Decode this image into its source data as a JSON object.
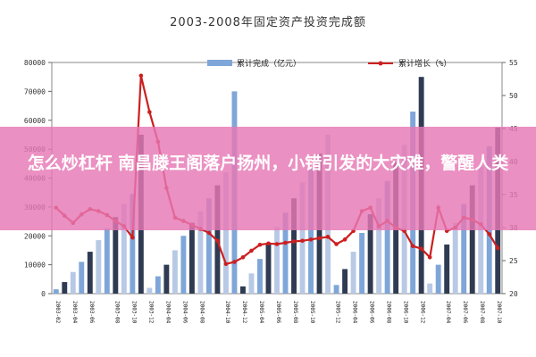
{
  "overlay": {
    "headline": "怎么炒杠杆 南昌滕王阁落户扬州，小错引发的大灾难，警醒人类"
  },
  "chart_data": {
    "type": "bar+line",
    "title": "2003-2008年固定资产投资完成额",
    "legend": [
      {
        "label": "累计完成（亿元）",
        "kind": "bar",
        "color": "#7fa6d8"
      },
      {
        "label": "累计增长（%）",
        "kind": "line",
        "color": "#cc1f1f"
      }
    ],
    "legend_position": "top",
    "left_axis": {
      "ylim": [
        0,
        80000
      ],
      "ticks": [
        "0",
        "10000",
        "20000",
        "30000",
        "40000",
        "50000",
        "60000",
        "70000",
        "80000"
      ]
    },
    "right_axis": {
      "ylim": [
        20,
        55
      ],
      "ticks": [
        "20",
        "25",
        "30",
        "35",
        "40",
        "45",
        "50",
        "55"
      ]
    },
    "x_tick_labels": [
      "2003-02",
      "2003-04",
      "2003-06",
      "2003-08",
      "2003-10",
      "2003-12",
      "2004-04",
      "2004-06",
      "2004-08",
      "2004-10",
      "2004-12",
      "2005-04",
      "2005-06",
      "2005-08",
      "2005-10",
      "2005-12",
      "2006-04",
      "2006-06",
      "2006-08",
      "2006-10",
      "2006-12",
      "2007-04",
      "2007-06",
      "2007-08",
      "2007-10"
    ],
    "months": [
      "2003-02",
      "2003-03",
      "2003-04",
      "2003-05",
      "2003-06",
      "2003-07",
      "2003-08",
      "2003-09",
      "2003-10",
      "2003-11",
      "2003-12",
      "2004-02",
      "2004-03",
      "2004-04",
      "2004-05",
      "2004-06",
      "2004-07",
      "2004-08",
      "2004-09",
      "2004-10",
      "2004-11",
      "2004-12",
      "2005-02",
      "2005-03",
      "2005-04",
      "2005-05",
      "2005-06",
      "2005-07",
      "2005-08",
      "2005-09",
      "2005-10",
      "2005-11",
      "2005-12",
      "2006-02",
      "2006-03",
      "2006-04",
      "2006-05",
      "2006-06",
      "2006-07",
      "2006-08",
      "2006-09",
      "2006-10",
      "2006-11",
      "2006-12",
      "2007-02",
      "2007-03",
      "2007-04",
      "2007-05",
      "2007-06",
      "2007-07",
      "2007-08",
      "2007-09",
      "2007-10"
    ],
    "bar_values": [
      1500,
      4000,
      7500,
      11000,
      14500,
      18500,
      22500,
      26500,
      31000,
      34500,
      55000,
      2000,
      6000,
      10000,
      15000,
      20000,
      24500,
      28500,
      33000,
      37500,
      42000,
      70000,
      2500,
      7000,
      12000,
      17500,
      23000,
      28000,
      33000,
      38500,
      43500,
      48500,
      55000,
      3000,
      8500,
      14500,
      21000,
      27500,
      33000,
      39000,
      45500,
      51500,
      63000,
      75000,
      3500,
      10000,
      17000,
      24500,
      31000,
      37500,
      44000,
      51000,
      57500
    ],
    "line_values": [
      33.0,
      31.8,
      30.7,
      32.0,
      32.8,
      32.5,
      31.9,
      31.0,
      30.2,
      28.5,
      53.0,
      47.5,
      43.0,
      36.0,
      31.5,
      31.0,
      30.4,
      29.8,
      29.2,
      28.0,
      24.5,
      24.8,
      25.5,
      26.5,
      27.4,
      27.6,
      27.5,
      27.7,
      27.9,
      28.0,
      28.2,
      28.4,
      28.6,
      27.5,
      28.2,
      29.5,
      32.5,
      33.0,
      30.2,
      31.0,
      30.0,
      29.5,
      27.2,
      26.8,
      25.5,
      33.0,
      29.5,
      30.0,
      31.5,
      31.2,
      30.5,
      29.0,
      26.9
    ]
  }
}
